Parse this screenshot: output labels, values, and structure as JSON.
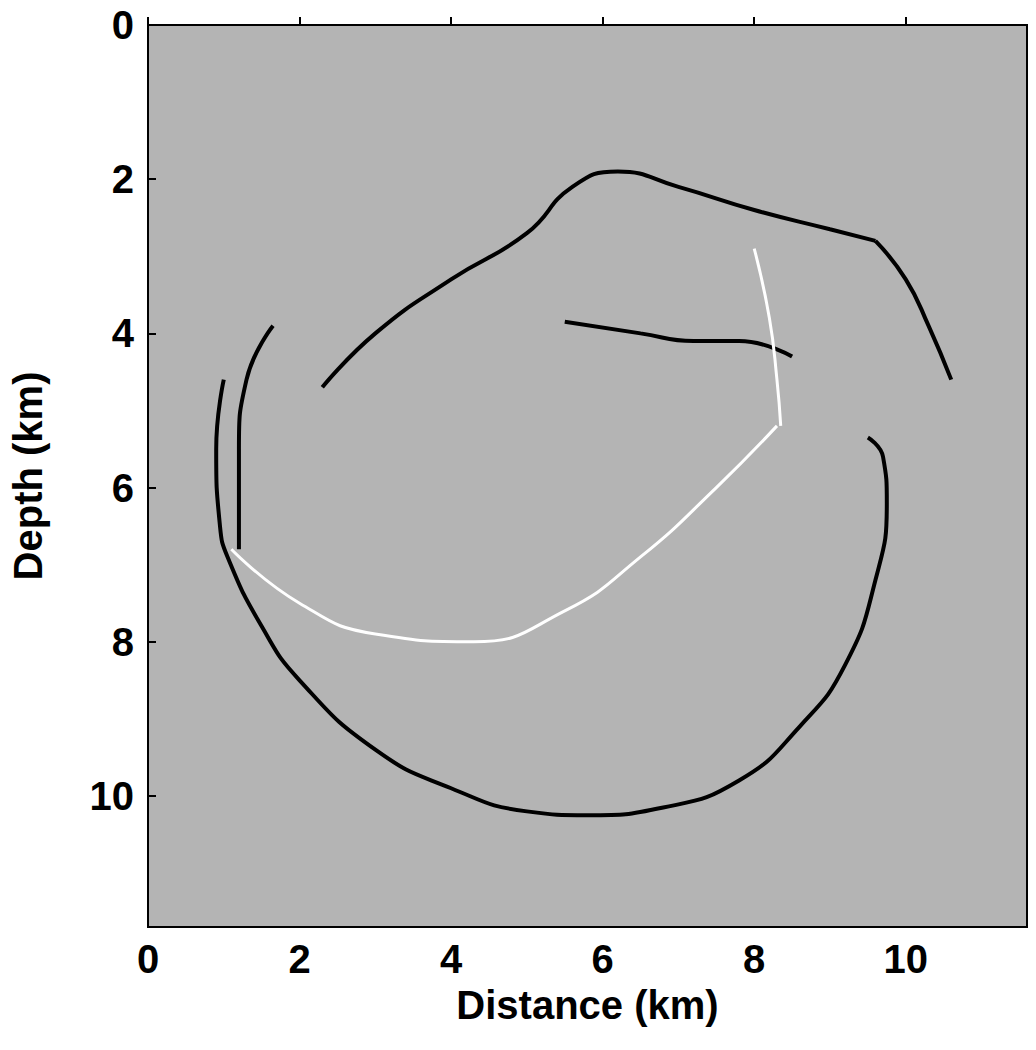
{
  "chart_data": {
    "type": "line",
    "x_label": "Distance (km)",
    "y_label": "Depth (km)",
    "xlim": [
      0,
      11.6
    ],
    "ylim": [
      11.7,
      0
    ],
    "xticks": [
      0,
      2,
      4,
      6,
      8,
      10
    ],
    "yticks": [
      0,
      2,
      4,
      6,
      8,
      10
    ],
    "grid": false,
    "series": [
      {
        "color": "#000000",
        "x": [
          1.0,
          0.9,
          0.95,
          1.05,
          1.5,
          2.0,
          3.0,
          4.0,
          5.0,
          5.8,
          6.8,
          7.8,
          8.6,
          9.2,
          9.6,
          9.75,
          9.7,
          9.5
        ],
        "values": [
          4.6,
          5.5,
          6.5,
          6.9,
          7.8,
          8.5,
          9.4,
          9.9,
          10.2,
          10.25,
          10.15,
          9.8,
          9.1,
          8.3,
          7.2,
          6.2,
          5.6,
          5.35
        ]
      },
      {
        "color": "#ffffff",
        "x": [
          1.1,
          2.0,
          3.0,
          4.3,
          5.5,
          6.5,
          7.5,
          8.3
        ],
        "values": [
          6.8,
          7.5,
          7.9,
          8.0,
          7.6,
          6.9,
          6.0,
          5.2
        ]
      },
      {
        "color": "#000000",
        "x": [
          2.3,
          3.0,
          4.0,
          5.0,
          5.6,
          6.2,
          7.0,
          8.0,
          9.0,
          9.6
        ],
        "values": [
          4.7,
          4.0,
          3.3,
          2.7,
          2.1,
          1.9,
          2.1,
          2.4,
          2.65,
          2.8
        ]
      },
      {
        "color": "#000000",
        "x": [
          9.6,
          10.0,
          10.3,
          10.6
        ],
        "values": [
          2.8,
          3.3,
          3.9,
          4.6
        ]
      },
      {
        "color": "#000000",
        "x": [
          5.5,
          6.5,
          7.2,
          7.8,
          8.5
        ],
        "values": [
          3.85,
          4.0,
          4.1,
          4.1,
          4.3
        ]
      },
      {
        "color": "#ffffff",
        "x": [
          8.0,
          8.2,
          8.3,
          8.35
        ],
        "values": [
          2.9,
          3.8,
          4.6,
          5.2
        ]
      },
      {
        "color": "#000000",
        "x": [
          1.65,
          1.3,
          1.2,
          1.2
        ],
        "values": [
          3.9,
          4.6,
          5.5,
          6.8
        ]
      }
    ]
  }
}
